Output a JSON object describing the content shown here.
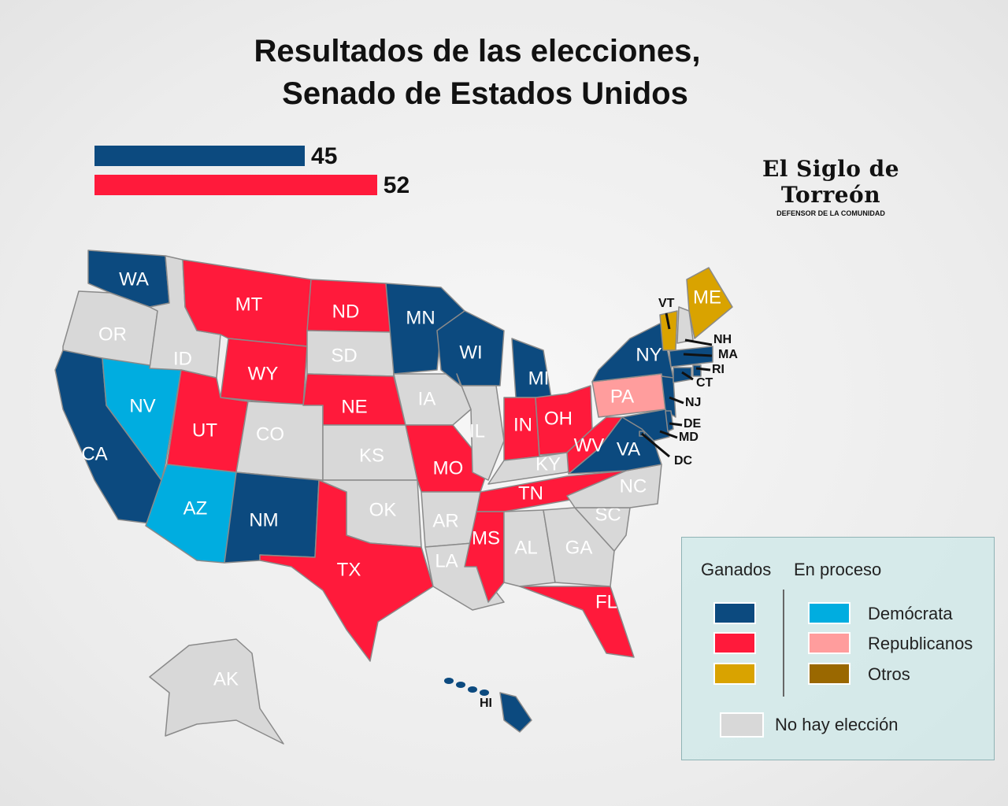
{
  "title_line1": "Resultados de las elecciones,",
  "title_line2": "Senado de Estados Unidos",
  "seats": {
    "democrats": 45,
    "republicans": 52
  },
  "logo": {
    "name": "El Siglo de Torreón",
    "tagline": "DEFENSOR DE LA COMUNIDAD"
  },
  "colors": {
    "dem_won": "#0c4a7f",
    "rep_won": "#ff1a3b",
    "oth_won": "#d9a300",
    "dem_pending": "#00ade0",
    "rep_pending": "#ff9d9d",
    "oth_pending": "#9a6800",
    "none": "#d8d8d8"
  },
  "states": {
    "WA": "dem_won",
    "OR": "none",
    "CA": "dem_won",
    "NV": "dem_pending",
    "ID": "none",
    "MT": "rep_won",
    "WY": "rep_won",
    "UT": "rep_won",
    "CO": "none",
    "AZ": "dem_pending",
    "NM": "dem_won",
    "ND": "rep_won",
    "SD": "none",
    "NE": "rep_won",
    "KS": "none",
    "OK": "none",
    "TX": "rep_won",
    "MN": "dem_won",
    "IA": "none",
    "MO": "rep_won",
    "AR": "none",
    "LA": "none",
    "WI": "dem_won",
    "IL": "none",
    "MI": "dem_won",
    "IN": "rep_won",
    "OH": "rep_won",
    "KY": "none",
    "TN": "rep_won",
    "MS": "rep_won",
    "AL": "none",
    "GA": "none",
    "FL": "rep_won",
    "SC": "none",
    "NC": "none",
    "VA": "dem_won",
    "WV": "rep_won",
    "PA": "rep_pending",
    "NY": "dem_won",
    "NJ": "dem_won",
    "MD": "dem_won",
    "DE": "dem_won",
    "DC": "dem_won",
    "VT": "oth_won",
    "NH": "none",
    "ME": "oth_won",
    "MA": "dem_won",
    "CT": "dem_won",
    "RI": "dem_won",
    "AK": "none",
    "HI": "dem_won"
  },
  "legend": {
    "won_header": "Ganados",
    "pending_header": "En proceso",
    "democrat": "Demócrata",
    "republican": "Republicanos",
    "others": "Otros",
    "no_election": "No hay elección"
  }
}
